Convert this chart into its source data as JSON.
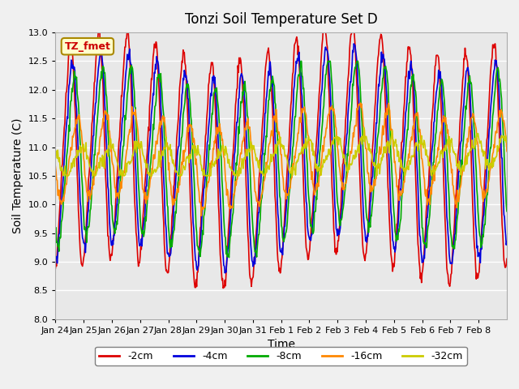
{
  "title": "Tonzi Soil Temperature Set D",
  "xlabel": "Time",
  "ylabel": "Soil Temperature (C)",
  "ylim": [
    8.0,
    13.0
  ],
  "yticks": [
    8.0,
    8.5,
    9.0,
    9.5,
    10.0,
    10.5,
    11.0,
    11.5,
    12.0,
    12.5,
    13.0
  ],
  "xtick_labels": [
    "Jan 24",
    "Jan 25",
    "Jan 26",
    "Jan 27",
    "Jan 28",
    "Jan 29",
    "Jan 30",
    "Jan 31",
    "Feb 1",
    "Feb 2",
    "Feb 3",
    "Feb 4",
    "Feb 5",
    "Feb 6",
    "Feb 7",
    "Feb 8"
  ],
  "legend_label": "TZ_fmet",
  "series_labels": [
    "-2cm",
    "-4cm",
    "-8cm",
    "-16cm",
    "-32cm"
  ],
  "colors": [
    "#dd0000",
    "#0000dd",
    "#00aa00",
    "#ff8800",
    "#cccc00"
  ],
  "background_color": "#e8e8e8",
  "days": 16,
  "base_temp": 10.7,
  "amplitude_2cm": 1.9,
  "amplitude_4cm": 1.6,
  "amplitude_8cm": 1.4,
  "amplitude_16cm": 0.7,
  "amplitude_32cm": 0.25
}
